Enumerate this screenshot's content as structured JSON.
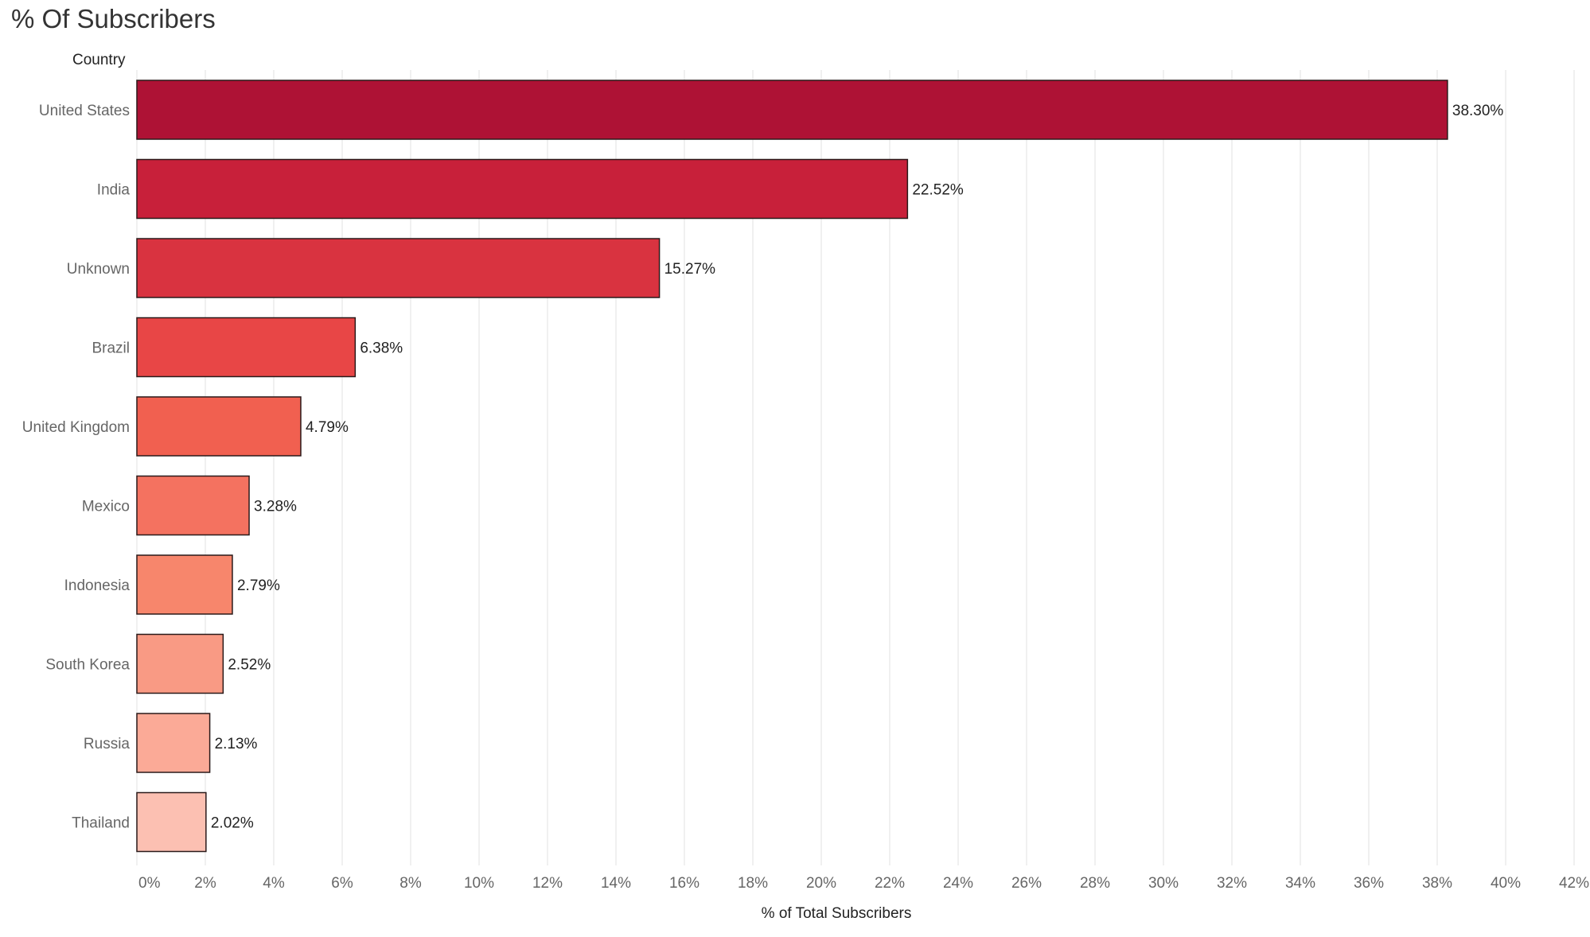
{
  "chart_data": {
    "type": "bar",
    "orientation": "horizontal",
    "title": "% Of Subscribers",
    "row_header": "Country",
    "xlabel": "% of Total Subscribers",
    "ylabel": "",
    "xlim": [
      0,
      42
    ],
    "x_ticks": [
      "0%",
      "2%",
      "4%",
      "6%",
      "8%",
      "10%",
      "12%",
      "14%",
      "16%",
      "18%",
      "20%",
      "22%",
      "24%",
      "26%",
      "28%",
      "30%",
      "32%",
      "34%",
      "36%",
      "38%",
      "40%",
      "42%"
    ],
    "categories": [
      "United States",
      "India",
      "Unknown",
      "Brazil",
      "United Kingdom",
      "Mexico",
      "Indonesia",
      "South Korea",
      "Russia",
      "Thailand"
    ],
    "values": [
      38.3,
      22.52,
      15.27,
      6.38,
      4.79,
      3.28,
      2.79,
      2.52,
      2.13,
      2.02
    ],
    "value_labels": [
      "38.30%",
      "22.52%",
      "15.27%",
      "6.38%",
      "4.79%",
      "3.28%",
      "2.79%",
      "2.52%",
      "2.13%",
      "2.02%"
    ],
    "bar_colors": [
      "#ae1235",
      "#c8203a",
      "#d93340",
      "#e84646",
      "#f16050",
      "#f47260",
      "#f7866c",
      "#f99a84",
      "#fbaa97",
      "#fcc0b2"
    ],
    "grid": true
  }
}
